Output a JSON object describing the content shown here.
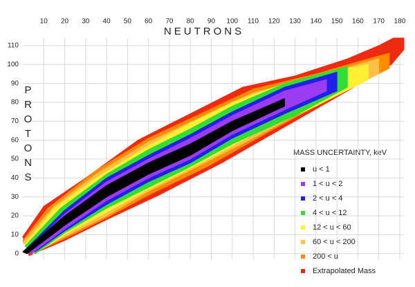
{
  "chart_data": {
    "type": "region",
    "title": "NEUTRONS",
    "y_title": "PROTONS",
    "legend_title": "MASS UNCERTAINTY, keV",
    "xlim": [
      0,
      182
    ],
    "ylim": [
      -3,
      114
    ],
    "xticks": [
      10,
      20,
      30,
      40,
      50,
      60,
      70,
      80,
      90,
      100,
      110,
      120,
      130,
      140,
      150,
      160,
      170,
      180
    ],
    "yticks": [
      0,
      10,
      20,
      30,
      40,
      50,
      60,
      70,
      80,
      90,
      100,
      110
    ],
    "grid": true,
    "legend": "lower right",
    "series": [
      {
        "name": "u < 1",
        "color": "#000000",
        "x": [
          0,
          20,
          40,
          60,
          80,
          100,
          125,
          125,
          100,
          80,
          60,
          40,
          20,
          2
        ],
        "values": [
          1,
          20,
          36,
          48,
          58,
          70,
          82,
          78,
          65,
          52,
          42,
          30,
          15,
          0
        ]
      },
      {
        "name": "1 < u < 2",
        "color": "#9b3cf2",
        "x": [
          2,
          20,
          40,
          60,
          80,
          100,
          125,
          145,
          145,
          125,
          100,
          80,
          60,
          40,
          20,
          4
        ],
        "values": [
          2,
          21,
          38,
          50,
          61,
          73,
          86,
          92,
          86,
          76,
          63,
          50,
          40,
          28,
          13,
          0
        ]
      },
      {
        "name": "2 < u < 4",
        "color": "#2020e8",
        "x": [
          2,
          20,
          40,
          60,
          80,
          100,
          125,
          150,
          150,
          125,
          100,
          80,
          60,
          40,
          20,
          6
        ],
        "values": [
          3,
          23,
          40,
          52,
          63,
          75,
          88,
          96,
          86,
          74,
          61,
          48,
          38,
          26,
          12,
          1
        ]
      },
      {
        "name": "4 < u < 12",
        "color": "#33dd33",
        "x": [
          1,
          18,
          40,
          60,
          80,
          100,
          125,
          155,
          155,
          130,
          100,
          80,
          60,
          40,
          20,
          6
        ],
        "values": [
          4,
          24,
          42,
          55,
          66,
          78,
          90,
          99,
          88,
          73,
          58,
          46,
          35,
          24,
          11,
          0
        ]
      },
      {
        "name": "12 < u < 60",
        "color": "#fff033",
        "x": [
          1,
          15,
          35,
          60,
          80,
          100,
          125,
          150,
          165,
          165,
          140,
          110,
          85,
          60,
          40,
          20,
          6
        ],
        "values": [
          5,
          24,
          40,
          57,
          69,
          80,
          90,
          97,
          100,
          92,
          78,
          63,
          48,
          34,
          22,
          10,
          0
        ]
      },
      {
        "name": "60 < u < 200",
        "color": "#ffc04a",
        "x": [
          0,
          15,
          35,
          60,
          85,
          110,
          135,
          160,
          170,
          170,
          145,
          115,
          85,
          60,
          40,
          20,
          5
        ],
        "values": [
          6,
          25,
          42,
          59,
          72,
          85,
          92,
          100,
          103,
          95,
          82,
          64,
          47,
          33,
          20,
          9,
          0
        ]
      },
      {
        "name": "200 < u",
        "color": "#ff8c00",
        "x": [
          0,
          12,
          35,
          60,
          85,
          110,
          140,
          165,
          175,
          175,
          150,
          120,
          88,
          60,
          40,
          20,
          4
        ],
        "values": [
          7,
          24,
          44,
          61,
          74,
          87,
          95,
          103,
          106,
          98,
          84,
          66,
          46,
          31,
          19,
          8,
          0
        ]
      },
      {
        "name": "Extrapolated Mass",
        "color": "#ee2a10",
        "x": [
          0,
          10,
          30,
          55,
          80,
          105,
          130,
          155,
          170,
          177,
          182,
          182,
          176,
          155,
          125,
          95,
          65,
          40,
          20,
          3
        ],
        "values": [
          9,
          25,
          40,
          60,
          74,
          88,
          94,
          103,
          110,
          114,
          114,
          108,
          100,
          86,
          67,
          48,
          31,
          18,
          7,
          -1
        ]
      }
    ]
  }
}
